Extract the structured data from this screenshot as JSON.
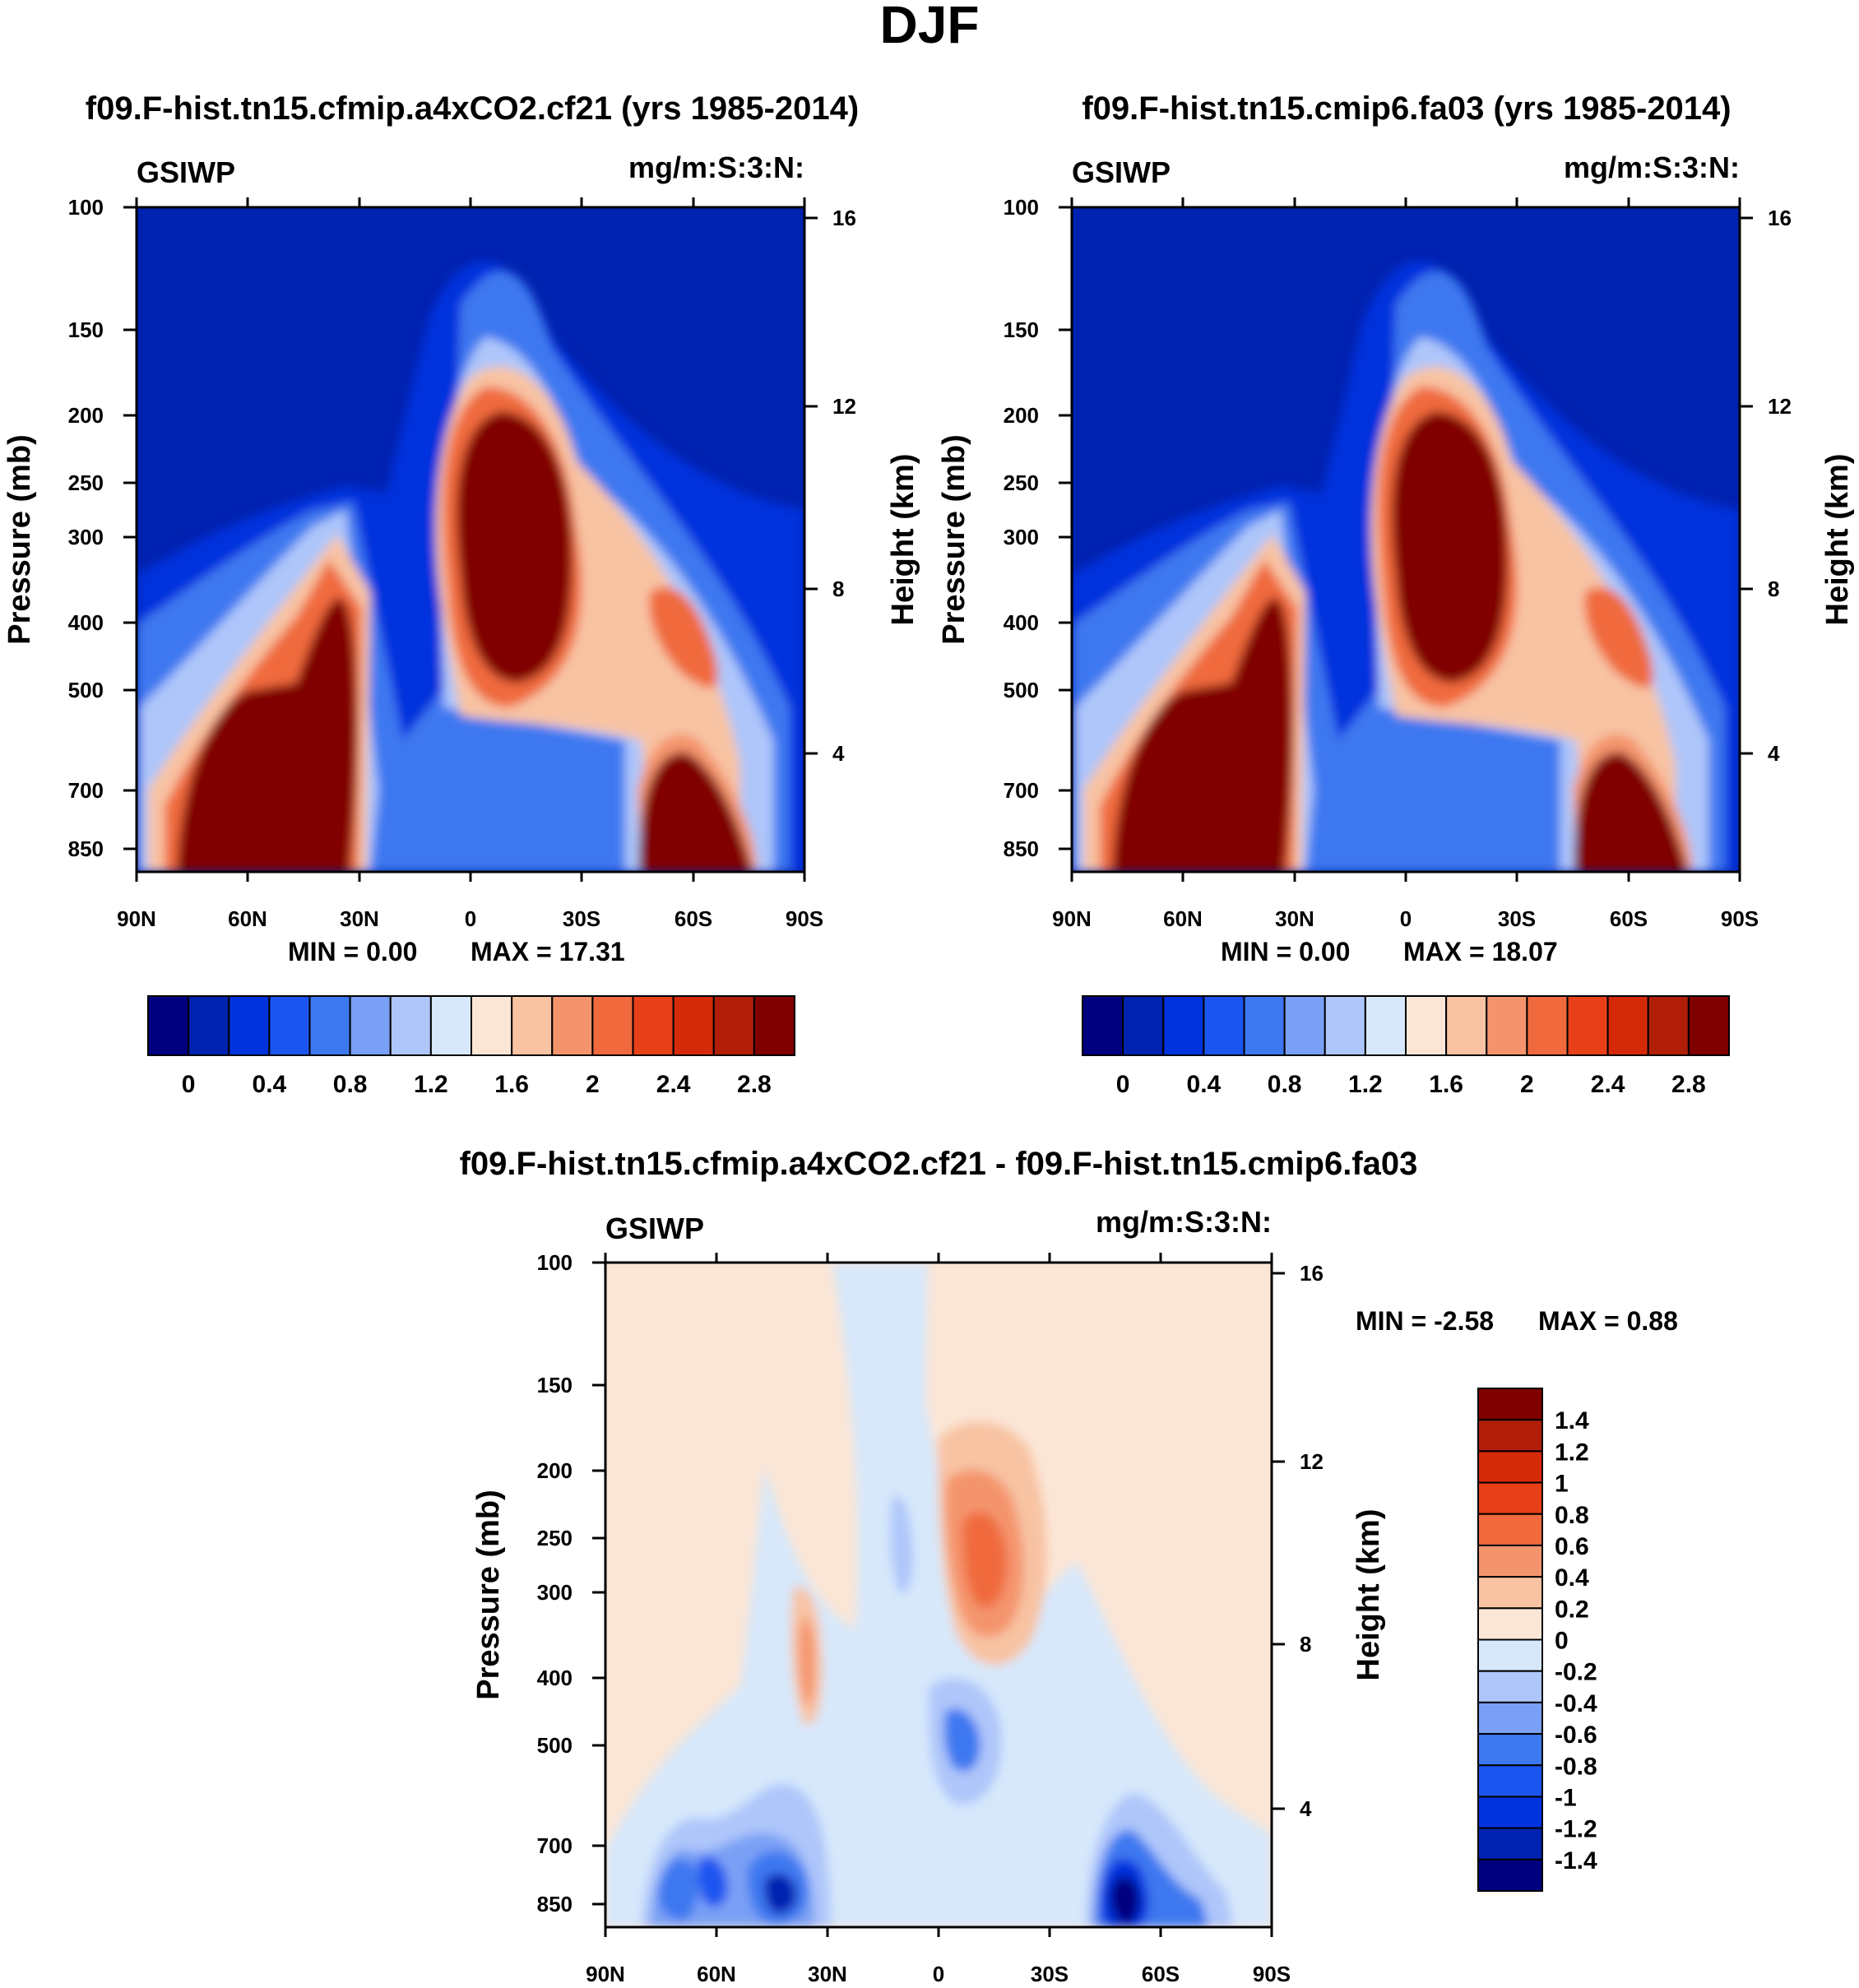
{
  "figure": {
    "title": "DJF"
  },
  "colorbars": {
    "abs": {
      "colors": [
        "#00007f",
        "#0022b0",
        "#0033dd",
        "#1a55f0",
        "#3d78f0",
        "#7aa0f5",
        "#aec6fa",
        "#d7e8fb",
        "#fbe6d6",
        "#f8c3a3",
        "#f4946d",
        "#f06a3d",
        "#e84018",
        "#d52a0a",
        "#b01e08",
        "#800000"
      ],
      "labels": [
        "0",
        "0.4",
        "0.8",
        "1.2",
        "1.6",
        "2",
        "2.4",
        "2.8"
      ]
    },
    "diff": {
      "colors": [
        "#00007f",
        "#0022b0",
        "#0033dd",
        "#1a55f0",
        "#3d78f0",
        "#7aa0f5",
        "#aec6fa",
        "#d7e8fb",
        "#fbe6d6",
        "#f8c3a3",
        "#f4946d",
        "#f06a3d",
        "#e84018",
        "#d52a0a",
        "#b01e08",
        "#800000"
      ],
      "labels": [
        "1.4",
        "1.2",
        "1",
        "0.8",
        "0.6",
        "0.4",
        "0.2",
        "0",
        "-0.2",
        "-0.4",
        "-0.6",
        "-0.8",
        "-1",
        "-1.2",
        "-1.4"
      ]
    }
  },
  "chart_data": [
    {
      "type": "heatmap",
      "title": "f09.F-hist.tn15.cfmip.a4xCO2.cf21 (yrs 1985-2014)",
      "variable": "GSIWP",
      "units": "mg/m:S:3:N:",
      "xlabel": "",
      "ylabel": "Pressure (mb)",
      "y2label": "Height (km)",
      "x_ticks": [
        "90N",
        "60N",
        "30N",
        "0",
        "30S",
        "60S",
        "90S"
      ],
      "y_ticks": [
        100,
        150,
        200,
        250,
        300,
        400,
        500,
        700,
        850
      ],
      "y2_ticks": [
        16,
        12,
        8,
        4
      ],
      "min_label": "MIN =   0.00",
      "max_label": "MAX =  17.31",
      "contour_levels": [
        0,
        0.2,
        0.4,
        0.6,
        0.8,
        1.0,
        1.2,
        1.4,
        1.6,
        1.8,
        2.0,
        2.2,
        2.4,
        2.6,
        2.8
      ],
      "features": [
        {
          "lat": -12,
          "p": 330,
          "peak": 17.3,
          "desc": "tropical upper-tropospheric maximum"
        },
        {
          "lat": 45,
          "p": 700,
          "peak": 10,
          "desc": "NH mid-latitude maximum"
        },
        {
          "lat": -58,
          "p": 780,
          "peak": 8,
          "desc": "SH mid-latitude maximum"
        }
      ]
    },
    {
      "type": "heatmap",
      "title": "f09.F-hist.tn15.cmip6.fa03 (yrs 1985-2014)",
      "variable": "GSIWP",
      "units": "mg/m:S:3:N:",
      "xlabel": "",
      "ylabel": "Pressure (mb)",
      "y2label": "Height (km)",
      "x_ticks": [
        "90N",
        "60N",
        "30N",
        "0",
        "30S",
        "60S",
        "90S"
      ],
      "y_ticks": [
        100,
        150,
        200,
        250,
        300,
        400,
        500,
        700,
        850
      ],
      "y2_ticks": [
        16,
        12,
        8,
        4
      ],
      "min_label": "MIN =   0.00",
      "max_label": "MAX =  18.07",
      "contour_levels": [
        0,
        0.2,
        0.4,
        0.6,
        0.8,
        1.0,
        1.2,
        1.4,
        1.6,
        1.8,
        2.0,
        2.2,
        2.4,
        2.6,
        2.8
      ],
      "features": [
        {
          "lat": -12,
          "p": 330,
          "peak": 18.1,
          "desc": "tropical upper-tropospheric maximum"
        },
        {
          "lat": 45,
          "p": 700,
          "peak": 10,
          "desc": "NH mid-latitude maximum"
        },
        {
          "lat": -58,
          "p": 780,
          "peak": 8,
          "desc": "SH mid-latitude maximum"
        }
      ]
    },
    {
      "type": "heatmap",
      "title": "f09.F-hist.tn15.cfmip.a4xCO2.cf21 - f09.F-hist.tn15.cmip6.fa03",
      "variable": "GSIWP",
      "units": "mg/m:S:3:N:",
      "xlabel": "",
      "ylabel": "Pressure (mb)",
      "y2label": "Height (km)",
      "x_ticks": [
        "90N",
        "60N",
        "30N",
        "0",
        "30S",
        "60S",
        "90S"
      ],
      "y_ticks": [
        100,
        150,
        200,
        250,
        300,
        400,
        500,
        700,
        850
      ],
      "y2_ticks": [
        16,
        12,
        8,
        4
      ],
      "min_label": "MIN =  -2.58",
      "max_label": "MAX =    0.88",
      "contour_levels": [
        -1.4,
        -1.2,
        -1.0,
        -0.8,
        -0.6,
        -0.4,
        -0.2,
        0,
        0.2,
        0.4,
        0.6,
        0.8,
        1.0,
        1.2,
        1.4
      ],
      "features": [
        {
          "lat": -12,
          "p": 290,
          "peak": 0.88,
          "desc": "positive difference, tropical upper troposphere"
        },
        {
          "lat": 35,
          "p": 400,
          "peak": 0.5,
          "desc": "positive difference near 30N"
        },
        {
          "lat": -2,
          "p": 520,
          "peak": -0.8,
          "desc": "negative difference near equator"
        },
        {
          "lat": 42,
          "p": 760,
          "peak": -1.0,
          "desc": "negative difference NH low levels"
        },
        {
          "lat": 75,
          "p": 760,
          "peak": -0.8,
          "desc": "negative difference NH high latitudes"
        },
        {
          "lat": -52,
          "p": 780,
          "peak": -2.58,
          "desc": "minimum near 55S low levels"
        }
      ]
    }
  ]
}
